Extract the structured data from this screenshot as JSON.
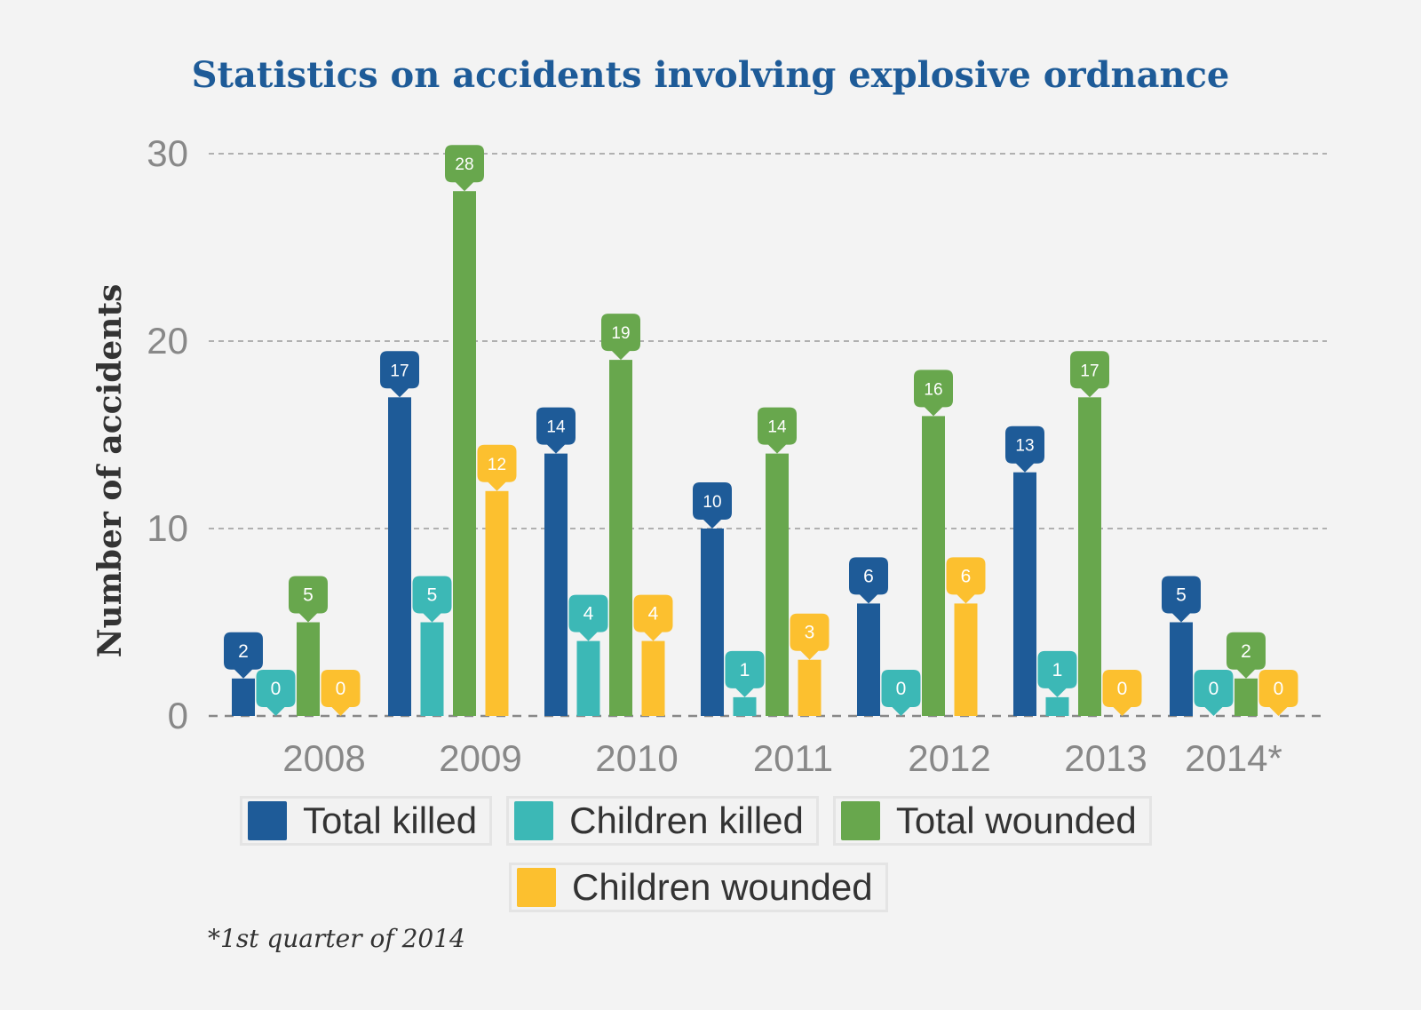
{
  "chart_data": {
    "type": "bar",
    "title": "Statistics on accidents involving explosive ordnance",
    "xlabel": "",
    "ylabel": "Number of accidents",
    "ylim": [
      0,
      30
    ],
    "yticks": [
      "0",
      "10",
      "20",
      "30"
    ],
    "grid": true,
    "legend_placement": "bottom",
    "categories": [
      "2008",
      "2009",
      "2010",
      "2011",
      "2012",
      "2013",
      "2014*"
    ],
    "series": [
      {
        "name": "Total killed",
        "color": "#1e5b98",
        "values": [
          2,
          17,
          14,
          10,
          6,
          13,
          5
        ]
      },
      {
        "name": "Children killed",
        "color": "#3cb8b6",
        "values": [
          0,
          5,
          4,
          1,
          0,
          1,
          0
        ]
      },
      {
        "name": "Total wounded",
        "color": "#68a74d",
        "values": [
          5,
          28,
          19,
          14,
          16,
          17,
          2
        ]
      },
      {
        "name": "Children wounded",
        "color": "#fcc02f",
        "values": [
          0,
          12,
          4,
          3,
          6,
          0,
          0
        ]
      }
    ],
    "footnote": "*1st quarter of 2014"
  }
}
